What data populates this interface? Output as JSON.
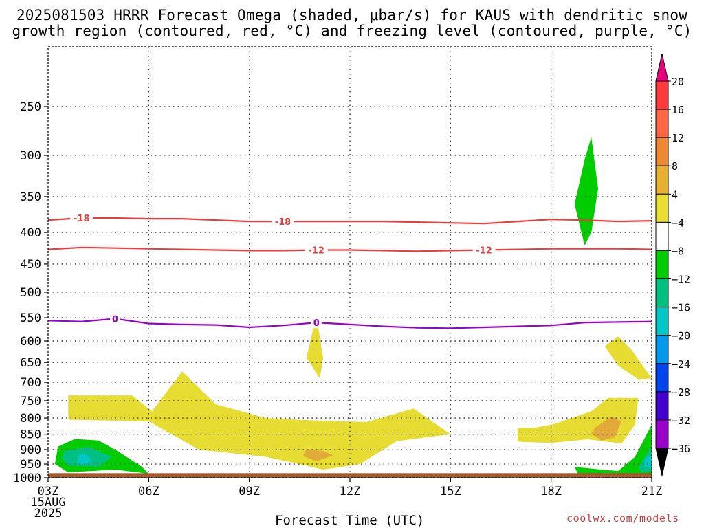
{
  "title_line1": "2025081503 HRRR Forecast Omega (shaded, μbar/s) for KAUS with dendritic snow",
  "title_line2": "growth region (contoured, red, °C) and freezing level (contoured, purple, °C)",
  "credit": "coolwx.com/models",
  "chart_data": {
    "type": "heatmap",
    "xlabel": "Forecast Time (UTC)",
    "ylabel": "",
    "x_hours": [
      3,
      6,
      9,
      12,
      15,
      18,
      21
    ],
    "x_ticks": [
      "03Z",
      "06Z",
      "09Z",
      "12Z",
      "15Z",
      "18Z",
      "21Z"
    ],
    "x_first_date": [
      "15AUG",
      "2025"
    ],
    "y_ticks": [
      250,
      300,
      350,
      400,
      450,
      500,
      550,
      600,
      650,
      700,
      750,
      800,
      850,
      900,
      950,
      1000
    ],
    "ylim": [
      200,
      1000
    ],
    "y_scale": "log",
    "grid": true,
    "colorbar": {
      "levels": [
        20,
        16,
        12,
        8,
        4,
        -4,
        -8,
        -12,
        -16,
        -20,
        -24,
        -28,
        -32,
        -36
      ],
      "colors": [
        "#e6007e",
        "#ff3a3a",
        "#ff6644",
        "#ee8833",
        "#e8b030",
        "#e8df30",
        "#ffffff",
        "#00cc00",
        "#00c080",
        "#00c8c8",
        "#0099ee",
        "#0044ee",
        "#4400cc",
        "#9900cc",
        "#bbbbbb",
        "#000000"
      ]
    },
    "shading": [
      {
        "class": "4 to 8",
        "color": "#e6dc32",
        "polygon": [
          [
            3.6,
            735
          ],
          [
            5.5,
            735
          ],
          [
            6.1,
            780
          ],
          [
            7.0,
            672
          ],
          [
            8.0,
            760
          ],
          [
            9.5,
            800
          ],
          [
            11.0,
            808
          ],
          [
            12.5,
            812
          ],
          [
            13.9,
            772
          ],
          [
            15.0,
            850
          ],
          [
            13.4,
            872
          ],
          [
            12.3,
            950
          ],
          [
            11.2,
            970
          ],
          [
            10.5,
            950
          ],
          [
            9.5,
            925
          ],
          [
            7.5,
            900
          ],
          [
            6.0,
            810
          ],
          [
            3.6,
            805
          ]
        ]
      },
      {
        "class": "4 to 8",
        "color": "#e6dc32",
        "polygon": [
          [
            10.7,
            640
          ],
          [
            11.0,
            545
          ],
          [
            11.2,
            640
          ],
          [
            11.1,
            690
          ],
          [
            10.8,
            650
          ]
        ]
      },
      {
        "class": "4 to 8",
        "color": "#e6dc32",
        "polygon": [
          [
            17.0,
            830
          ],
          [
            17.5,
            830
          ],
          [
            18.1,
            818
          ],
          [
            19.2,
            780
          ],
          [
            19.7,
            742
          ],
          [
            20.6,
            742
          ],
          [
            20.5,
            820
          ],
          [
            20.1,
            880
          ],
          [
            19.1,
            866
          ],
          [
            18.0,
            878
          ],
          [
            17.0,
            874
          ]
        ]
      },
      {
        "class": "4 to 8",
        "color": "#e6dc32",
        "polygon": [
          [
            19.6,
            612
          ],
          [
            20.0,
            590
          ],
          [
            20.4,
            620
          ],
          [
            21.0,
            690
          ],
          [
            20.6,
            692
          ],
          [
            20.0,
            658
          ]
        ]
      },
      {
        "class": "8 to 12",
        "color": "#e2aa38",
        "polygon": [
          [
            10.7,
            900
          ],
          [
            11.2,
            905
          ],
          [
            11.5,
            920
          ],
          [
            11.0,
            940
          ],
          [
            10.6,
            922
          ]
        ]
      },
      {
        "class": "8 to 12",
        "color": "#e2aa38",
        "polygon": [
          [
            19.3,
            830
          ],
          [
            19.8,
            795
          ],
          [
            20.1,
            810
          ],
          [
            19.9,
            860
          ],
          [
            19.5,
            870
          ],
          [
            19.2,
            848
          ]
        ]
      },
      {
        "class": "-4 to -8",
        "color": "#00cc00",
        "polygon": [
          [
            3.3,
            890
          ],
          [
            3.8,
            865
          ],
          [
            4.5,
            870
          ],
          [
            5.0,
            900
          ],
          [
            5.8,
            960
          ],
          [
            6.0,
            985
          ],
          [
            5.0,
            970
          ],
          [
            3.6,
            980
          ],
          [
            3.2,
            950
          ]
        ]
      },
      {
        "class": "-4 to -8",
        "color": "#00cc00",
        "polygon": [
          [
            19.0,
            305
          ],
          [
            19.2,
            280
          ],
          [
            19.4,
            340
          ],
          [
            19.2,
            400
          ],
          [
            19.0,
            420
          ],
          [
            18.7,
            360
          ]
        ]
      },
      {
        "class": "-4 to -8",
        "color": "#00cc00",
        "polygon": [
          [
            18.7,
            960
          ],
          [
            19.5,
            970
          ],
          [
            20.0,
            975
          ],
          [
            20.5,
            925
          ],
          [
            21.0,
            820
          ],
          [
            21.0,
            990
          ],
          [
            18.8,
            985
          ]
        ]
      },
      {
        "class": "-8 to -12",
        "color": "#00c085",
        "polygon": [
          [
            3.5,
            905
          ],
          [
            4.2,
            890
          ],
          [
            4.9,
            925
          ],
          [
            4.5,
            960
          ],
          [
            3.6,
            955
          ],
          [
            3.4,
            930
          ]
        ]
      },
      {
        "class": "-8 to -12",
        "color": "#00c085",
        "polygon": [
          [
            20.6,
            960
          ],
          [
            21.0,
            890
          ],
          [
            21.0,
            975
          ],
          [
            20.7,
            980
          ]
        ]
      },
      {
        "class": "-12 to -16",
        "color": "#00c8c8",
        "polygon": [
          [
            3.9,
            920
          ],
          [
            4.1,
            915
          ],
          [
            4.3,
            935
          ],
          [
            4.1,
            955
          ],
          [
            3.9,
            945
          ]
        ]
      },
      {
        "class": "-12 to -16",
        "color": "#00c8c8",
        "polygon": [
          [
            20.8,
            930
          ],
          [
            21.0,
            920
          ],
          [
            21.0,
            965
          ],
          [
            20.8,
            960
          ]
        ]
      }
    ],
    "contours": [
      {
        "value": -18,
        "color": "#ee3b3b",
        "labels": [
          [
            4.0,
            "-18"
          ],
          [
            10.0,
            "-18"
          ]
        ],
        "x": [
          3,
          4,
          5,
          6,
          7,
          8,
          9,
          10,
          11,
          12,
          13,
          14,
          15,
          16,
          17,
          18,
          19,
          20,
          21
        ],
        "p": [
          382,
          379,
          379,
          380,
          380,
          382,
          384,
          384,
          384,
          384,
          384,
          385,
          386,
          387,
          384,
          381,
          382,
          384,
          383
        ]
      },
      {
        "value": -12,
        "color": "#ee3b3b",
        "labels": [
          [
            11.0,
            "-12"
          ],
          [
            16.0,
            "-12"
          ]
        ],
        "x": [
          3,
          4,
          5,
          6,
          7,
          8,
          9,
          10,
          11,
          12,
          13,
          14,
          15,
          16,
          17,
          18,
          19,
          20,
          21
        ],
        "p": [
          426,
          423,
          424,
          425,
          426,
          427,
          428,
          428,
          427,
          427,
          428,
          429,
          428,
          427,
          426,
          425,
          425,
          425,
          426
        ]
      },
      {
        "value": 0,
        "color": "#9900cc",
        "labels": [
          [
            5.0,
            "0"
          ],
          [
            11.0,
            "0"
          ]
        ],
        "x": [
          3,
          4,
          5,
          6,
          7,
          8,
          9,
          10,
          11,
          12,
          13,
          14,
          15,
          16,
          17,
          18,
          19,
          20,
          21
        ],
        "p": [
          556,
          558,
          552,
          562,
          564,
          565,
          570,
          566,
          560,
          564,
          568,
          571,
          572,
          570,
          568,
          566,
          560,
          559,
          558
        ]
      }
    ],
    "terrain": {
      "color": "#a35a2e",
      "from_pressure": 983,
      "to_pressure": 1000
    }
  }
}
